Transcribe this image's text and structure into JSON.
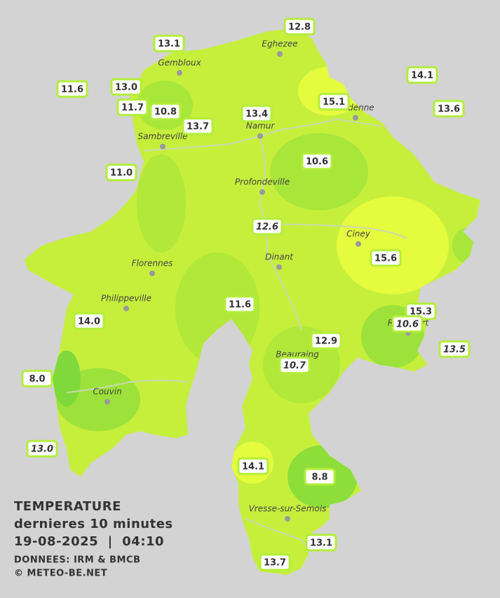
{
  "cities": [
    "Eghezee",
    "Gembloux",
    "Andenne",
    "Namur",
    "Sambreville",
    "Profondeville",
    "Ciney",
    "Dinant",
    "Florennes",
    "Philippeville",
    "Rochefort",
    "Beauraing",
    "Couvin",
    "Vresse-sur-Semois"
  ],
  "stations": [
    {
      "label": "12.8"
    },
    {
      "label": "13.1"
    },
    {
      "label": "14.1"
    },
    {
      "label": "11.6"
    },
    {
      "label": "13.0"
    },
    {
      "label": "15.1"
    },
    {
      "label": "13.6"
    },
    {
      "label": "11.7"
    },
    {
      "label": "10.8"
    },
    {
      "label": "13.4"
    },
    {
      "label": "13.7"
    },
    {
      "label": "10.6"
    },
    {
      "label": "11.0"
    },
    {
      "label": "12.6",
      "italic": true
    },
    {
      "label": "15.6"
    },
    {
      "label": "11.6"
    },
    {
      "label": "15.3"
    },
    {
      "label": "10.6",
      "italic": true
    },
    {
      "label": "14.0"
    },
    {
      "label": "12.9"
    },
    {
      "label": "13.5",
      "italic": true
    },
    {
      "label": "10.7",
      "italic": true
    },
    {
      "label": "8.0"
    },
    {
      "label": "13.0",
      "italic": true
    },
    {
      "label": "14.1"
    },
    {
      "label": "8.8"
    },
    {
      "label": "13.1"
    },
    {
      "label": "13.7"
    }
  ],
  "caption": {
    "title": "TEMPERATURE",
    "subtitle": "dernieres 10 minutes",
    "datetime": "19-08-2025  |  04:10",
    "source": "DONNEES: IRM & BMCB",
    "copyright": "© METEO-BE.NET"
  }
}
